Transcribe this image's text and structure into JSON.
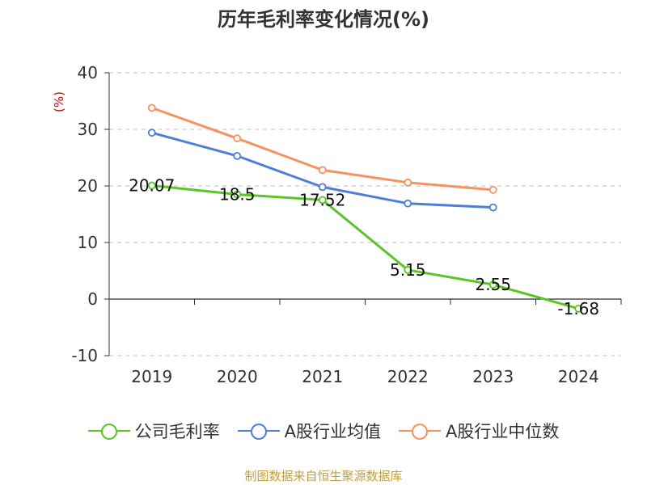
{
  "chart_data": {
    "type": "line",
    "title": "历年毛利率变化情况(%)",
    "ylabel": "(%)",
    "xlabel": "",
    "categories": [
      "2019",
      "2020",
      "2021",
      "2022",
      "2023",
      "2024"
    ],
    "ylim": [
      -10,
      40
    ],
    "yticks": [
      40,
      30,
      20,
      10,
      0,
      -10
    ],
    "grid": true,
    "legend_position": "bottom",
    "series": [
      {
        "name": "公司毛利率",
        "color": "#5ac626",
        "values": [
          20.07,
          18.5,
          17.52,
          5.15,
          2.55,
          -1.68
        ],
        "labels": [
          "20.07",
          "18.5",
          "17.52",
          "5.15",
          "2.55",
          "-1.68"
        ]
      },
      {
        "name": "A股行业均值",
        "color": "#4d7fd9",
        "values": [
          29.4,
          25.3,
          19.8,
          16.9,
          16.2,
          null
        ]
      },
      {
        "name": "A股行业中位数",
        "color": "#f5925e",
        "values": [
          33.8,
          28.4,
          22.8,
          20.6,
          19.3,
          null
        ]
      }
    ]
  },
  "legend": {
    "items": [
      "公司毛利率",
      "A股行业均值",
      "A股行业中位数"
    ]
  },
  "source": "制图数据来自恒生聚源数据库"
}
